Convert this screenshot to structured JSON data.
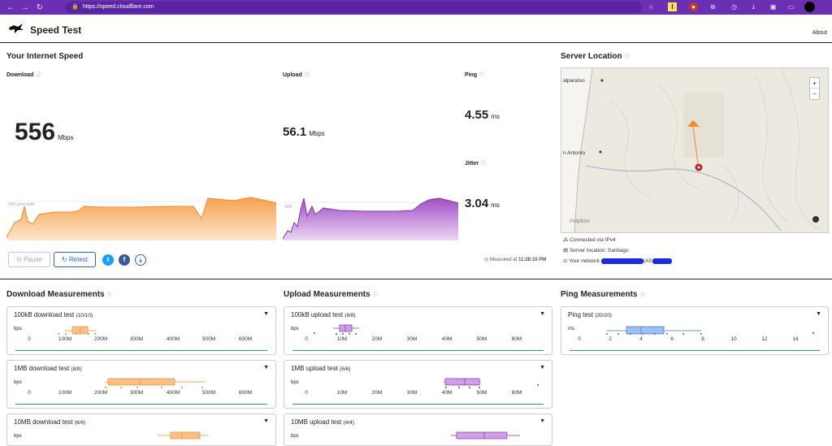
{
  "browser": {
    "url": "https://speed.cloudflare.com"
  },
  "header": {
    "title": "Speed Test",
    "about": "About"
  },
  "internet": {
    "heading": "Your Internet Speed",
    "download": {
      "label": "Download",
      "value": "556",
      "unit": "Mbps",
      "percentile": "90th percentile"
    },
    "upload": {
      "label": "Upload",
      "value": "56.1",
      "unit": "Mbps",
      "percentile": "90th"
    },
    "ping": {
      "label": "Ping",
      "value": "4.55",
      "unit": "ms"
    },
    "jitter": {
      "label": "Jitter",
      "value": "3.04",
      "unit": "ms"
    },
    "pause": "Pause",
    "retest": "Retest",
    "measured_prefix": "Measured at",
    "measured_time": "11:28:10 PM"
  },
  "server": {
    "heading": "Server Location",
    "map_labels": [
      "alparaíso",
      "n Antonio"
    ],
    "mapbox": "mapbox",
    "connected": "Connected via IPv4",
    "location": "Server location: Santiago",
    "network": "Your network",
    "as": "(AS"
  },
  "download_measurements": {
    "heading": "Download Measurements",
    "cards": [
      {
        "name": "100kB download test",
        "count": "(10/10)",
        "unit": "bps",
        "ticks": [
          "0",
          "100M",
          "200M",
          "300M",
          "400M",
          "500M",
          "600M"
        ]
      },
      {
        "name": "1MB download test",
        "count": "(8/8)",
        "unit": "bps",
        "ticks": [
          "0",
          "100M",
          "200M",
          "300M",
          "400M",
          "500M",
          "600M"
        ]
      },
      {
        "name": "10MB download test",
        "count": "(6/6)",
        "unit": "bps"
      }
    ]
  },
  "upload_measurements": {
    "heading": "Upload Measurements",
    "cards": [
      {
        "name": "100kB upload test",
        "count": "(8/8)",
        "unit": "bps",
        "ticks": [
          "0",
          "10M",
          "20M",
          "30M",
          "40M",
          "50M",
          "60M"
        ]
      },
      {
        "name": "1MB upload test",
        "count": "(6/6)",
        "unit": "bps",
        "ticks": [
          "0",
          "10M",
          "20M",
          "30M",
          "40M",
          "50M",
          "60M"
        ]
      },
      {
        "name": "10MB upload test",
        "count": "(4/4)",
        "unit": "bps"
      }
    ]
  },
  "ping_measurements": {
    "heading": "Ping Measurements",
    "cards": [
      {
        "name": "Ping test",
        "count": "(20/20)",
        "unit": "ms",
        "ticks": [
          "0",
          "2",
          "4",
          "6",
          "8",
          "10",
          "12",
          "14"
        ]
      }
    ]
  },
  "colors": {
    "download": "#f6a04d",
    "upload": "#a24fc4",
    "ping": "#5a8fd8",
    "accent": "#2962cc",
    "browser": "#6b2fb3",
    "green_line": "#2da44e"
  }
}
